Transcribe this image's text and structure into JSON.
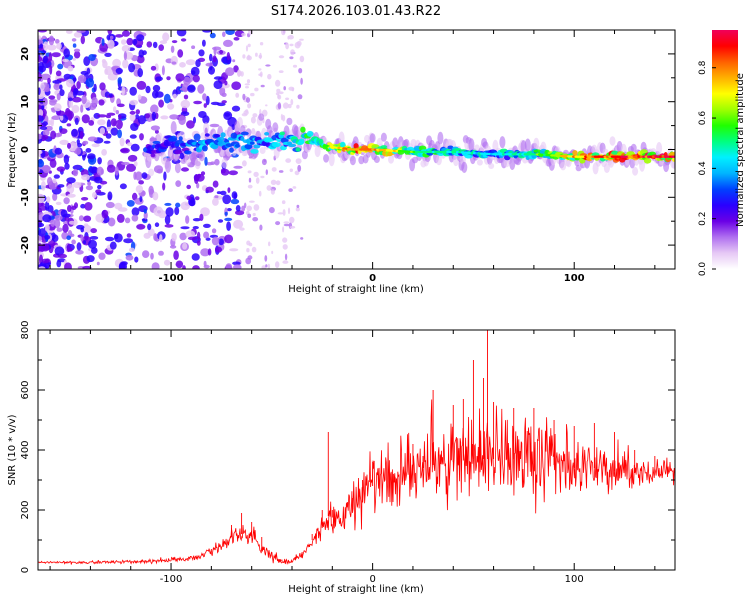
{
  "title": "S174.2026.103.01.43.R22",
  "colorbar": {
    "label": "Normalized spectral amplitude",
    "ticks": [
      "0.0",
      "0.2",
      "0.4",
      "0.6",
      "0.8"
    ],
    "tick_values": [
      0.0,
      0.2,
      0.4,
      0.6,
      0.8
    ],
    "range": [
      0,
      0.95
    ],
    "colors": [
      "#ffffff",
      "#e6c8f5",
      "#b070f0",
      "#6a00e6",
      "#2a00ff",
      "#0040ff",
      "#00b4ff",
      "#00f0ff",
      "#00ff80",
      "#20ff00",
      "#a0ff00",
      "#ffff00",
      "#ffb000",
      "#ff6000",
      "#ff0000",
      "#f0005a"
    ]
  },
  "chart_data": [
    {
      "type": "heatmap",
      "name": "spectrogram",
      "xlabel": "Height of straight line (km)",
      "ylabel": "Frequency (Hz)",
      "xlim": [
        -166,
        150
      ],
      "ylim": [
        -25,
        25
      ],
      "x_ticks": [
        -100,
        0,
        100
      ],
      "x_tick_labels": [
        "-100",
        "0",
        "100"
      ],
      "y_ticks": [
        20,
        10,
        0,
        -10,
        -20
      ],
      "y_tick_labels": [
        "20",
        "10",
        "0",
        "-10",
        "-20"
      ],
      "ridge": {
        "x": [
          -110,
          -90,
          -70,
          -50,
          -40,
          -30,
          -20,
          -10,
          0,
          20,
          40,
          60,
          80,
          100,
          120,
          150
        ],
        "freq": [
          0,
          1,
          1.5,
          1.5,
          2,
          2,
          0.5,
          0,
          0,
          -0.5,
          -0.5,
          -1,
          -1,
          -1.5,
          -1.5,
          -1.5
        ],
        "peak_amplitude": [
          0.3,
          0.4,
          0.45,
          0.45,
          0.5,
          0.55,
          0.7,
          0.85,
          0.85,
          0.6,
          0.5,
          0.45,
          0.55,
          0.8,
          0.9,
          0.92
        ]
      }
    },
    {
      "type": "line",
      "name": "snr",
      "xlabel": "Height of straight line (km)",
      "ylabel": "SNR (10 * v/v)",
      "xlim": [
        -166,
        150
      ],
      "ylim": [
        0,
        800
      ],
      "x_ticks": [
        -100,
        0,
        100
      ],
      "x_tick_labels": [
        "-100",
        "0",
        "100"
      ],
      "y_ticks": [
        0,
        200,
        400,
        600,
        800
      ],
      "y_tick_labels": [
        "0",
        "200",
        "400",
        "600",
        "800"
      ],
      "series": [
        {
          "name": "SNR",
          "color": "#ff0000",
          "x": [
            -166,
            -140,
            -110,
            -90,
            -80,
            -70,
            -65,
            -60,
            -55,
            -50,
            -45,
            -40,
            -35,
            -30,
            -25,
            -22,
            -20,
            -15,
            -10,
            -5,
            0,
            10,
            20,
            25,
            30,
            40,
            45,
            50,
            55,
            57,
            60,
            70,
            80,
            90,
            100,
            110,
            120,
            130,
            140,
            150
          ],
          "values": [
            25,
            25,
            30,
            40,
            70,
            150,
            190,
            160,
            110,
            60,
            35,
            30,
            60,
            120,
            200,
            460,
            200,
            180,
            240,
            300,
            360,
            280,
            420,
            380,
            600,
            550,
            570,
            700,
            640,
            800,
            560,
            540,
            540,
            500,
            480,
            490,
            460,
            400,
            380,
            360
          ],
          "noise_band": [
            8,
            8,
            10,
            14,
            25,
            40,
            50,
            50,
            45,
            30,
            15,
            12,
            20,
            40,
            60,
            80,
            90,
            100,
            120,
            140,
            160,
            170,
            180,
            190,
            200,
            210,
            215,
            220,
            225,
            230,
            230,
            220,
            210,
            190,
            160,
            140,
            120,
            90,
            70,
            50
          ],
          "trend": [
            25,
            25,
            30,
            40,
            60,
            110,
            120,
            110,
            80,
            45,
            30,
            30,
            50,
            100,
            150,
            180,
            175,
            180,
            210,
            250,
            280,
            300,
            330,
            340,
            350,
            360,
            365,
            370,
            370,
            370,
            370,
            370,
            360,
            350,
            340,
            340,
            330,
            330,
            330,
            330
          ]
        }
      ]
    }
  ]
}
